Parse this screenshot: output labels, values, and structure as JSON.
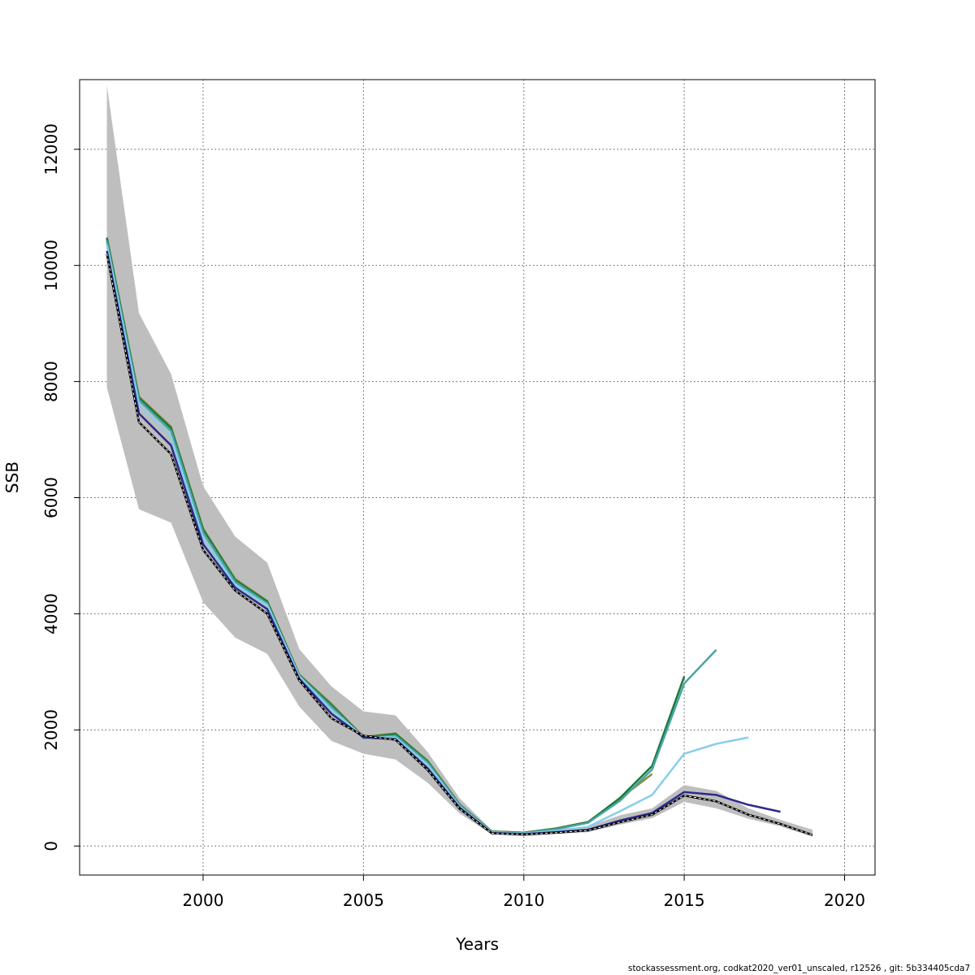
{
  "chart_data": {
    "type": "line",
    "title": "",
    "xlabel": "Years",
    "ylabel": "SSB",
    "xlim": [
      1996.15,
      2020.95
    ],
    "ylim": [
      -500,
      13200
    ],
    "x_ticks": [
      2000,
      2005,
      2010,
      2015,
      2020
    ],
    "x_tick_labels": [
      "2000",
      "2005",
      "2010",
      "2015",
      "2020"
    ],
    "y_ticks": [
      0,
      2000,
      4000,
      6000,
      8000,
      10000,
      12000
    ],
    "y_tick_labels": [
      "0",
      "2000",
      "4000",
      "6000",
      "8000",
      "10000",
      "12000"
    ],
    "grid": true,
    "legend": "none",
    "confidence_band": {
      "color": "#bebebe",
      "x": [
        1997,
        1998,
        1999,
        2000,
        2001,
        2002,
        2003,
        2004,
        2005,
        2006,
        2007,
        2008,
        2009,
        2010,
        2011,
        2012,
        2013,
        2014,
        2015,
        2016,
        2017,
        2018,
        2019
      ],
      "lower": [
        7900,
        5800,
        5570,
        4200,
        3590,
        3310,
        2400,
        1810,
        1590,
        1490,
        1090,
        560,
        200,
        170,
        210,
        240,
        370,
        480,
        760,
        650,
        470,
        340,
        160
      ],
      "upper": [
        13100,
        9180,
        8130,
        6200,
        5330,
        4880,
        3390,
        2750,
        2320,
        2250,
        1620,
        820,
        270,
        235,
        290,
        340,
        530,
        650,
        1050,
        950,
        650,
        450,
        280
      ]
    },
    "series": [
      {
        "color": "#000000",
        "dashed_overlay": true,
        "x": [
          1997,
          1998,
          1999,
          2000,
          2001,
          2002,
          2003,
          2004,
          2005,
          2006,
          2007,
          2008,
          2009,
          2010,
          2011,
          2012,
          2013,
          2014,
          2015,
          2016,
          2017,
          2018,
          2019
        ],
        "values": [
          10200,
          7300,
          6750,
          5100,
          4400,
          4000,
          2850,
          2200,
          1900,
          1830,
          1310,
          640,
          220,
          200,
          230,
          270,
          410,
          540,
          870,
          770,
          540,
          380,
          190
        ]
      },
      {
        "color": "#2b2b8c",
        "x": [
          1997,
          1998,
          1999,
          2000,
          2001,
          2002,
          2003,
          2004,
          2005,
          2006,
          2007,
          2008,
          2009,
          2010,
          2011,
          2012,
          2013,
          2014,
          2015,
          2016,
          2017,
          2018
        ],
        "values": [
          10250,
          7450,
          6900,
          5200,
          4450,
          4080,
          2880,
          2280,
          1870,
          1840,
          1340,
          660,
          225,
          205,
          240,
          280,
          440,
          570,
          930,
          880,
          710,
          590
        ]
      },
      {
        "color": "#87ceeb",
        "x": [
          1997,
          1998,
          1999,
          2000,
          2001,
          2002,
          2003,
          2004,
          2005,
          2006,
          2007,
          2008,
          2009,
          2010,
          2011,
          2012,
          2013,
          2014,
          2015,
          2016,
          2017
        ],
        "values": [
          10350,
          7600,
          7050,
          5300,
          4500,
          4150,
          2920,
          2350,
          1880,
          1870,
          1400,
          680,
          235,
          215,
          260,
          330,
          600,
          880,
          1590,
          1760,
          1870
        ]
      },
      {
        "color": "#4aa3a3",
        "x": [
          1997,
          1998,
          1999,
          2000,
          2001,
          2002,
          2003,
          2004,
          2005,
          2006,
          2007,
          2008,
          2009,
          2010,
          2011,
          2012,
          2013,
          2014,
          2015,
          2016
        ],
        "values": [
          10420,
          7680,
          7150,
          5400,
          4550,
          4180,
          2930,
          2400,
          1860,
          1900,
          1440,
          700,
          245,
          225,
          290,
          400,
          780,
          1320,
          2800,
          3380
        ]
      },
      {
        "color": "#1a7a3c",
        "x": [
          1997,
          1998,
          1999,
          2000,
          2001,
          2002,
          2003,
          2004,
          2005,
          2006,
          2007,
          2008,
          2009,
          2010,
          2011,
          2012,
          2013,
          2014,
          2015
        ],
        "values": [
          10470,
          7720,
          7200,
          5450,
          4580,
          4210,
          2940,
          2430,
          1870,
          1930,
          1460,
          710,
          250,
          230,
          300,
          410,
          830,
          1380,
          2920
        ]
      },
      {
        "color": "#8b8b3a",
        "x": [
          1997,
          1998,
          1999,
          2000,
          2001,
          2002,
          2003,
          2004,
          2005,
          2006,
          2007,
          2008,
          2009,
          2010,
          2011,
          2012,
          2013,
          2014
        ],
        "values": [
          10480,
          7740,
          7220,
          5470,
          4600,
          4220,
          2950,
          2450,
          1880,
          1940,
          1470,
          715,
          252,
          232,
          305,
          415,
          820,
          1240
        ]
      },
      {
        "color": "#6aaa3a",
        "x": [
          1997,
          1998,
          1999,
          2000,
          2001,
          2002,
          2003,
          2004,
          2005,
          2006,
          2007,
          2008,
          2009,
          2010,
          2011,
          2012
        ],
        "values": [
          10480,
          7730,
          7210,
          5460,
          4590,
          4210,
          2950,
          2440,
          1875,
          1935,
          1460,
          712,
          250,
          230,
          300,
          410
        ]
      }
    ]
  },
  "footer": "stockassessment.org, codkat2020_ver01_unscaled, r12526 , git: 5b334405cda7"
}
